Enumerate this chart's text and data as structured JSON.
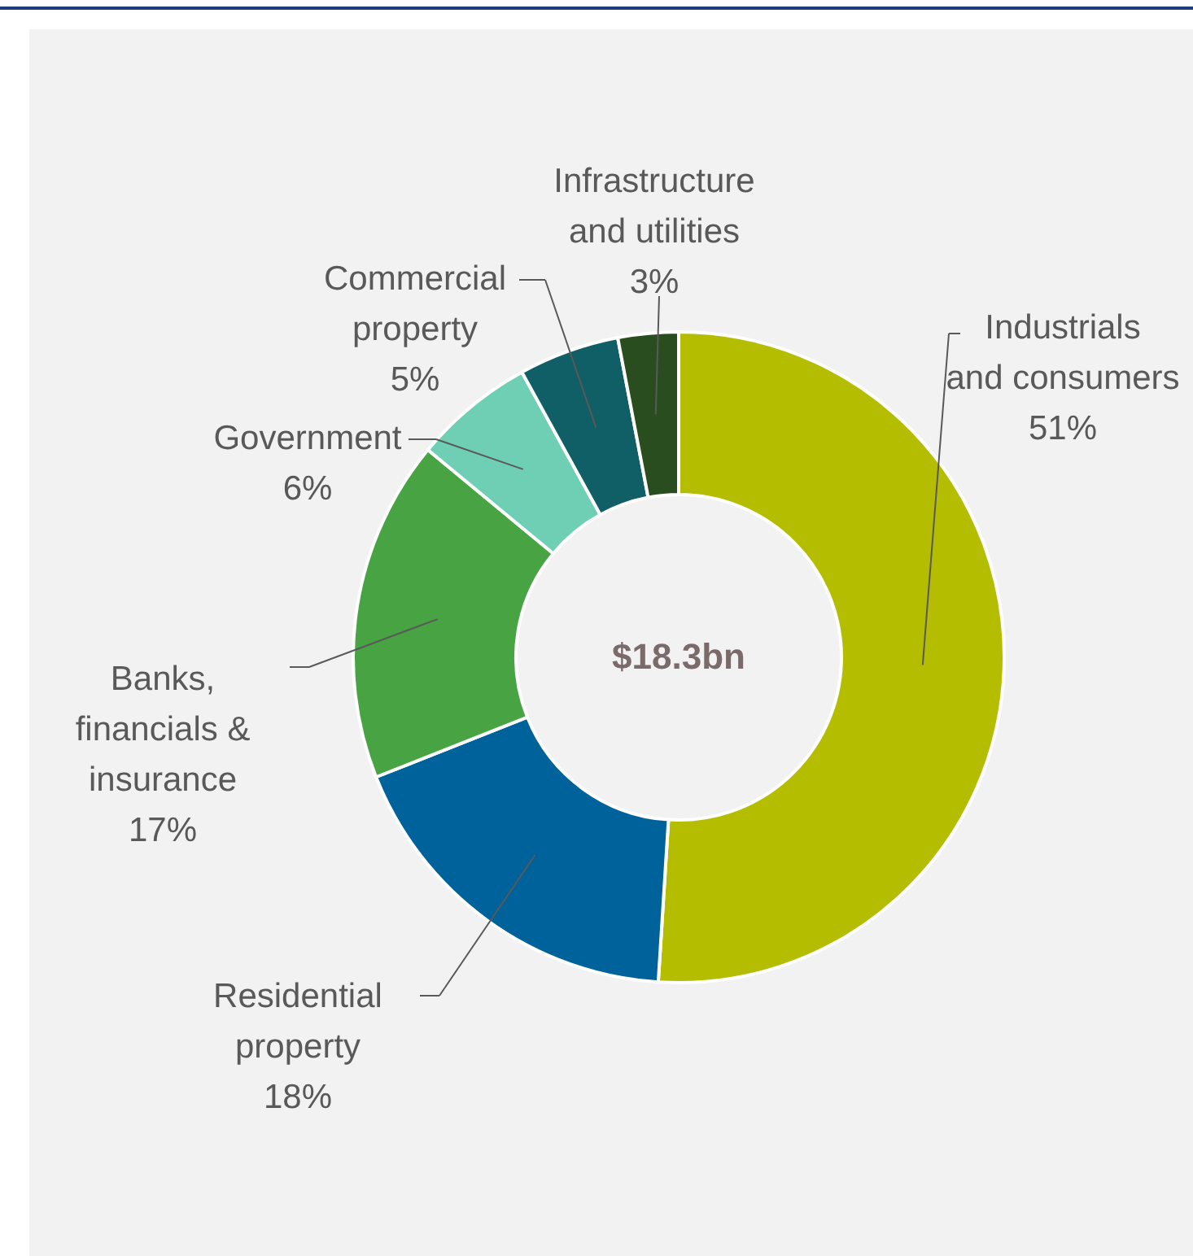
{
  "chart_data": {
    "type": "donut",
    "categories": [
      "Industrials and consumers",
      "Residential property",
      "Banks, financials & insurance",
      "Government",
      "Commercial property",
      "Infrastructure and utilities"
    ],
    "values": [
      51,
      18,
      17,
      6,
      5,
      3
    ],
    "value_labels": [
      "51%",
      "18%",
      "17%",
      "6%",
      "5%",
      "3%"
    ],
    "colors": [
      "#b5bd00",
      "#00629b",
      "#48a343",
      "#6fcfb4",
      "#105e66",
      "#2a4d1f"
    ],
    "annotations": [
      "$18.3bn"
    ]
  }
}
